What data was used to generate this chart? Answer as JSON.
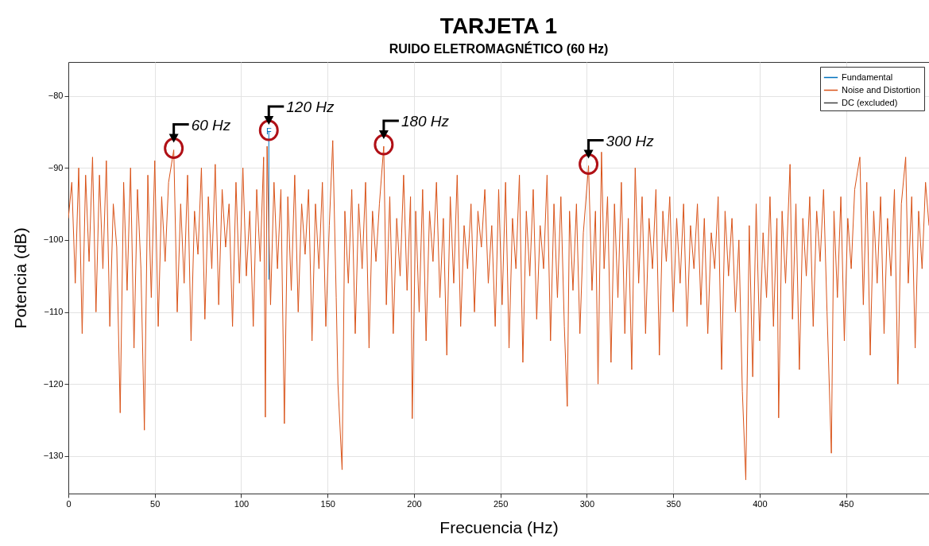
{
  "chart_data": {
    "type": "line",
    "title": "TARJETA 1",
    "subtitle": "RUIDO ELETROMAGNÉTICO (60 Hz)",
    "xlabel": "Frecuencia (Hz)",
    "ylabel": "Potencia (dB)",
    "xlim": [
      0,
      498
    ],
    "xticks": [
      0,
      50,
      100,
      150,
      200,
      250,
      300,
      350,
      400,
      450
    ],
    "ylim": [
      -135.2,
      -75.3
    ],
    "yticks": [
      -130,
      -120,
      -110,
      -100,
      -90,
      -80
    ],
    "grid": true,
    "legend": "top right",
    "series": [
      {
        "name": "Fundamental",
        "color": "#0072bd",
        "x": [
          116,
          116
        ],
        "values": [
          -85,
          -105.5
        ],
        "value_labels": [
          "F",
          null
        ]
      },
      {
        "name": "Noise and Distortion",
        "color": "#d95319",
        "x": [
          0,
          2,
          4,
          6,
          8,
          10,
          12,
          14,
          16,
          18,
          20,
          22,
          24,
          26,
          28,
          30,
          32,
          34,
          36,
          38,
          40,
          42,
          44,
          46,
          48,
          50,
          52,
          54,
          56,
          58,
          61,
          63,
          65,
          67,
          69,
          71,
          73,
          75,
          77,
          79,
          81,
          83,
          85,
          87,
          89,
          91,
          93,
          95,
          97,
          99,
          101,
          103,
          105,
          107,
          109,
          111,
          113,
          114,
          115,
          117,
          119,
          121,
          123,
          125,
          127,
          129,
          131,
          133,
          135,
          137,
          139,
          141,
          143,
          145,
          147,
          149,
          151,
          153,
          155,
          156,
          158.4,
          160,
          162,
          164,
          166,
          168,
          170,
          172,
          174,
          176,
          178,
          180,
          182.5,
          184,
          186,
          188,
          190,
          192,
          194,
          196,
          198,
          199,
          201,
          203,
          205,
          207,
          209,
          211,
          213,
          215,
          217,
          219,
          221,
          223,
          225,
          227,
          229,
          231,
          233,
          235,
          237,
          239,
          241,
          243,
          245,
          247,
          249,
          251,
          253,
          255,
          257,
          259,
          261,
          263,
          265,
          267,
          269,
          271,
          273,
          275,
          277,
          279,
          281,
          283,
          285,
          287,
          288.7,
          290,
          292,
          294,
          296,
          298,
          301,
          303,
          305,
          306.5,
          308.5,
          310,
          312,
          314,
          316,
          318,
          320,
          322,
          324,
          326,
          328,
          330,
          332,
          334,
          336,
          338,
          340,
          342,
          344,
          346,
          348,
          350,
          352,
          354,
          356,
          358,
          360,
          362,
          364,
          366,
          368,
          370,
          372,
          374,
          376,
          378,
          380,
          382,
          384,
          386,
          388,
          390,
          392,
          394,
          396,
          398,
          400,
          402,
          404,
          406,
          408,
          410,
          411,
          413,
          415,
          417.6,
          419,
          421,
          423,
          425,
          427,
          429,
          431,
          433,
          435,
          437,
          439,
          441.5,
          443,
          445,
          447,
          449,
          451,
          453,
          455,
          458,
          460,
          462,
          464,
          466,
          468,
          470,
          472,
          474,
          476,
          478,
          480,
          482,
          484.5,
          486,
          488,
          490,
          492,
          494,
          496,
          498
        ],
        "values": [
          -97,
          -92,
          -106,
          -90,
          -113,
          -91,
          -103,
          -88.5,
          -110,
          -91,
          -104,
          -89,
          -112,
          -95,
          -101,
          -124,
          -92,
          -107,
          -90,
          -115,
          -93,
          -104,
          -126.4,
          -91,
          -108,
          -89,
          -112,
          -94,
          -103,
          -92,
          -87.5,
          -110,
          -95,
          -106,
          -91,
          -114,
          -96,
          -102,
          -90,
          -111,
          -94,
          -104,
          -89.5,
          -109,
          -93,
          -101,
          -95,
          -112,
          -92,
          -106,
          -90,
          -105,
          -96,
          -112,
          -93,
          -103,
          -88.5,
          -124.6,
          -87,
          -109,
          -92,
          -104,
          -93,
          -125.5,
          -94,
          -107,
          -91,
          -110,
          -95,
          -102,
          -93,
          -114,
          -95,
          -104,
          -92,
          -112,
          -98,
          -86.2,
          -108,
          -120,
          -131.9,
          -96,
          -106,
          -93,
          -113,
          -95,
          -104,
          -92,
          -115,
          -96,
          -103,
          -95,
          -87,
          -109,
          -94,
          -113,
          -97,
          -105,
          -91,
          -107,
          -94,
          -124.8,
          -96,
          -110,
          -93,
          -114,
          -96,
          -103,
          -92,
          -108,
          -97,
          -116,
          -94,
          -106,
          -91,
          -112,
          -98,
          -104,
          -95,
          -110,
          -96,
          -101,
          -93,
          -106,
          -98,
          -112,
          -93,
          -109,
          -92,
          -115,
          -97,
          -104,
          -91,
          -117,
          -96,
          -105,
          -93,
          -111,
          -98,
          -104,
          -91,
          -114,
          -95,
          -108,
          -94,
          -112,
          -123.1,
          -96,
          -107,
          -95,
          -113,
          -99,
          -89.7,
          -107,
          -96,
          -120,
          -87.8,
          -104,
          -94,
          -117,
          -95,
          -108,
          -92,
          -113,
          -97,
          -118,
          -90,
          -106,
          -94,
          -113,
          -97,
          -104,
          -93,
          -116,
          -96,
          -103,
          -94,
          -110,
          -97,
          -106,
          -95,
          -112,
          -98,
          -104,
          -95,
          -109,
          -97,
          -113,
          -99,
          -104,
          -94,
          -118,
          -96,
          -105,
          -97,
          -110,
          -100,
          -121,
          -133.3,
          -98,
          -119,
          -95,
          -114,
          -99,
          -108,
          -94,
          -112,
          -97,
          -124.7,
          -96,
          -106,
          -89.5,
          -111,
          -95,
          -118,
          -97,
          -105,
          -94,
          -112,
          -96,
          -103,
          -93,
          -110,
          -129.6,
          -96,
          -108,
          -94,
          -114,
          -97,
          -104,
          -93,
          -88.5,
          -109,
          -92,
          -116,
          -96,
          -106,
          -94,
          -113,
          -97,
          -105,
          -93,
          -120,
          -95,
          -88.5,
          -106,
          -94,
          -115,
          -96,
          -104,
          -92,
          -98
        ]
      },
      {
        "name": "DC (excluded)",
        "color": "#404040"
      }
    ],
    "annotations": [
      {
        "text": "60 Hz",
        "x": 61,
        "y": -87.5
      },
      {
        "text": "120 Hz",
        "x": 116,
        "y": -85
      },
      {
        "text": "180 Hz",
        "x": 182.5,
        "y": -87
      },
      {
        "text": "300 Hz",
        "x": 301,
        "y": -89.7
      }
    ]
  }
}
